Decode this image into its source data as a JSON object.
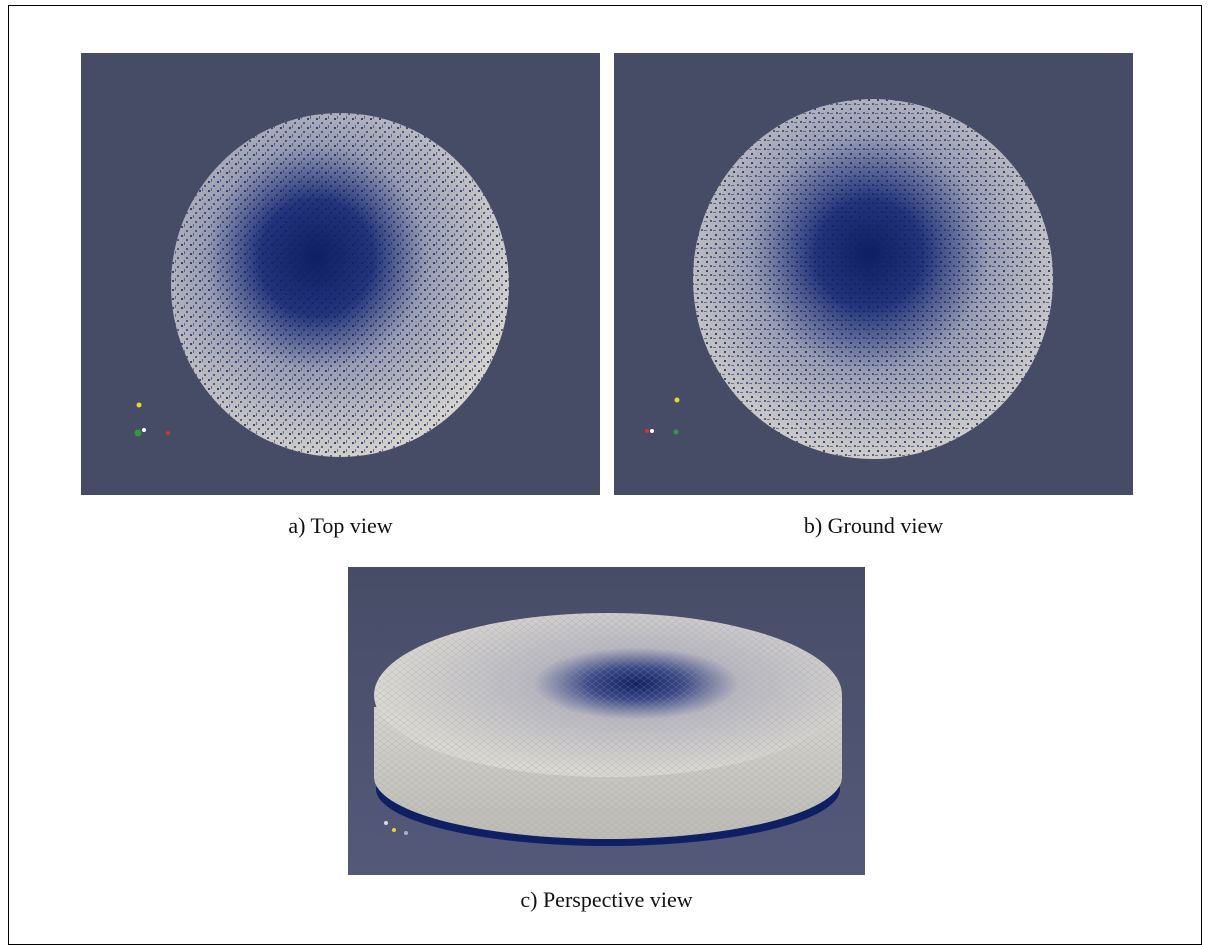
{
  "colors": {
    "background": "#474c66",
    "mesh_light": "#d6d3cc",
    "mesh_dark": "#0e1f63",
    "axis_x": "#d9312a",
    "axis_y": "#e8d630",
    "axis_z": "#2f9a3a"
  },
  "panels": [
    {
      "id": "a",
      "caption": "a) Top view"
    },
    {
      "id": "b",
      "caption": "b) Ground view"
    },
    {
      "id": "c",
      "caption": "c) Perspective view"
    }
  ]
}
